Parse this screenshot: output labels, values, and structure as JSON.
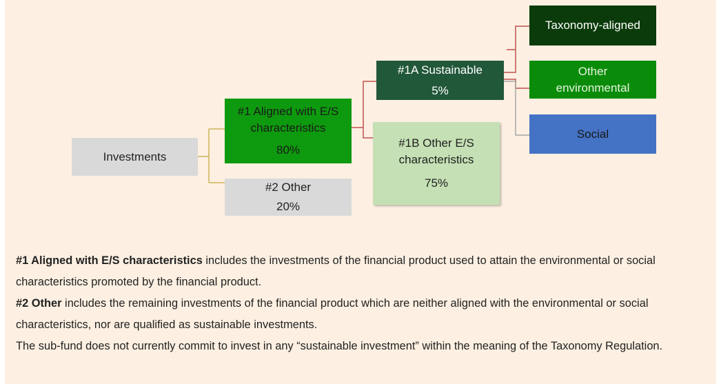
{
  "nodes": [
    {
      "label": "Investments"
    },
    {
      "label": "#1 Aligned with E/S characteristics",
      "value": "80%"
    },
    {
      "label": "#2 Other",
      "value": "20%"
    },
    {
      "label": "#1A Sustainable",
      "value": "5%"
    },
    {
      "label": "#1B Other E/S characteristics",
      "value": "75%"
    },
    {
      "label": "Taxonomy-aligned"
    },
    {
      "label": "Other environmental"
    },
    {
      "label": "Social"
    }
  ],
  "notes": [
    {
      "bold": "#1 Aligned with E/S characteristics",
      "text": " includes the investments of the financial product used to attain the environmental or social characteristics promoted by the financial product."
    },
    {
      "bold": "#2 Other",
      "text": " includes the remaining investments of the financial product which are neither aligned with the environmental or social characteristics, nor are qualified as sustainable investments."
    },
    {
      "text": "The sub-fund does not currently commit to invest in any “sustainable investment” within the meaning of the Taxonomy Regulation."
    }
  ]
}
